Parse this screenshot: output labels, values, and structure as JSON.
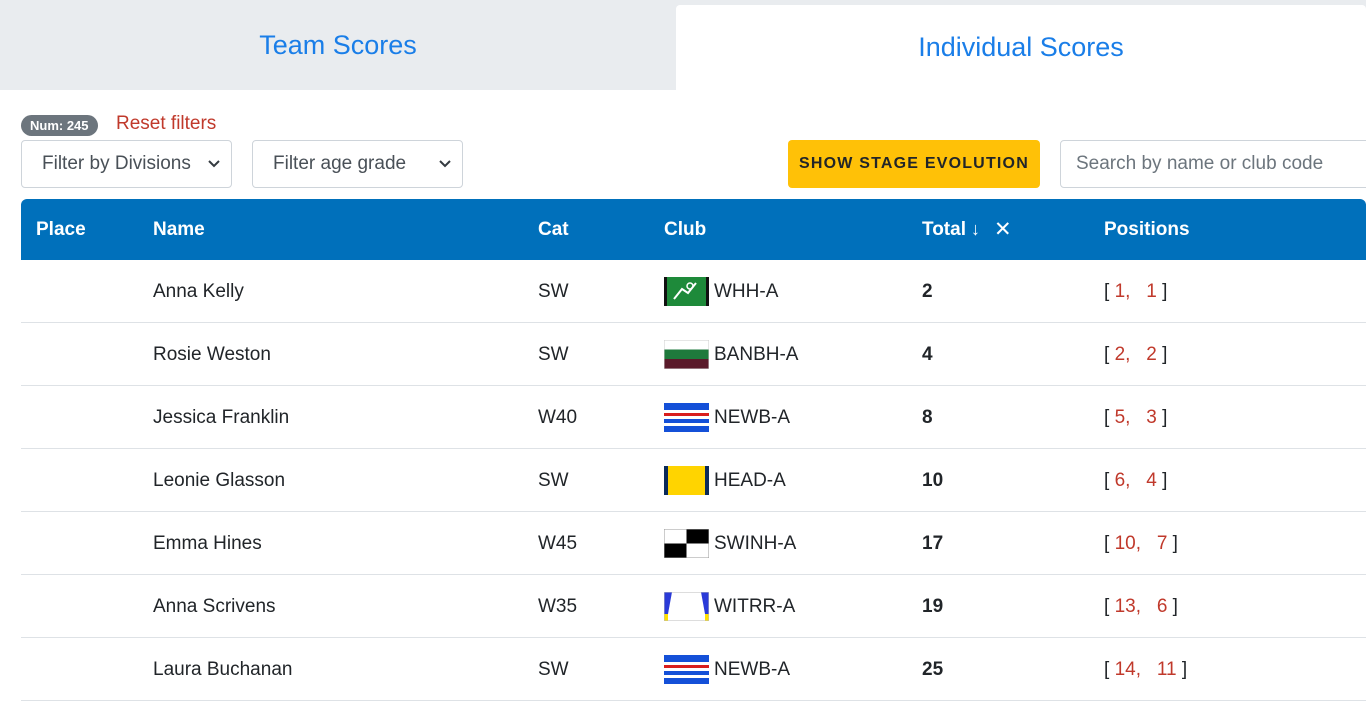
{
  "tabs": {
    "team": "Team Scores",
    "individual": "Individual Scores"
  },
  "counter": {
    "badge": "Num: 245",
    "reset": "Reset filters"
  },
  "filters": {
    "divisions": "Filter by Divisions",
    "age_grade": "Filter age grade",
    "stage_button": "SHOW STAGE EVOLUTION",
    "search_placeholder": "Search by name or club code"
  },
  "table": {
    "headers": {
      "place": "Place",
      "name": "Name",
      "cat": "Cat",
      "club": "Club",
      "total": "Total",
      "positions": "Positions"
    },
    "rows": [
      {
        "name": "Anna Kelly",
        "cat": "SW",
        "club": "WHH-A",
        "total": "2",
        "pos1": "1",
        "pos2": "1"
      },
      {
        "name": "Rosie Weston",
        "cat": "SW",
        "club": "BANBH-A",
        "total": "4",
        "pos1": "2",
        "pos2": "2"
      },
      {
        "name": "Jessica Franklin",
        "cat": "W40",
        "club": "NEWB-A",
        "total": "8",
        "pos1": "5",
        "pos2": "3"
      },
      {
        "name": "Leonie Glasson",
        "cat": "SW",
        "club": "HEAD-A",
        "total": "10",
        "pos1": "6",
        "pos2": "4"
      },
      {
        "name": "Emma Hines",
        "cat": "W45",
        "club": "SWINH-A",
        "total": "17",
        "pos1": "10",
        "pos2": "7"
      },
      {
        "name": "Anna Scrivens",
        "cat": "W35",
        "club": "WITRR-A",
        "total": "19",
        "pos1": "13",
        "pos2": "6"
      },
      {
        "name": "Laura Buchanan",
        "cat": "SW",
        "club": "NEWB-A",
        "total": "25",
        "pos1": "14",
        "pos2": "11"
      }
    ]
  },
  "colors": {
    "header_bg": "#0070bb",
    "accent": "#ffc107",
    "link": "#1a7ee8",
    "reset": "#c0392b"
  }
}
